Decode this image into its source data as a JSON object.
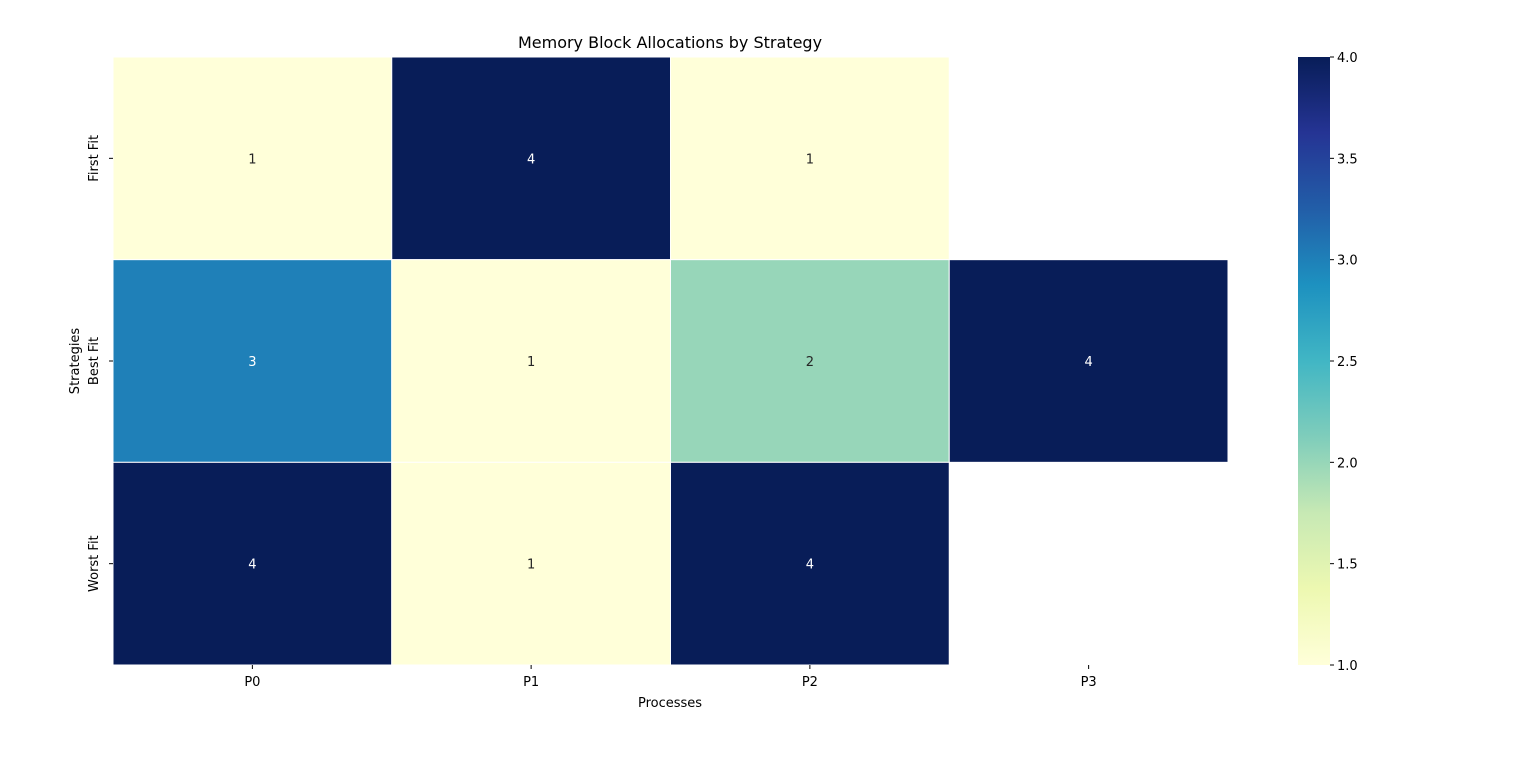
{
  "chart_data": {
    "type": "heatmap",
    "title": "Memory Block Allocations by Strategy",
    "xlabel": "Processes",
    "ylabel": "Strategies",
    "x_categories": [
      "P0",
      "P1",
      "P2",
      "P3"
    ],
    "y_categories": [
      "First Fit",
      "Best Fit",
      "Worst Fit"
    ],
    "values": [
      [
        1,
        4,
        1,
        null
      ],
      [
        3,
        1,
        2,
        4
      ],
      [
        4,
        1,
        4,
        null
      ]
    ],
    "colorbar": {
      "colormap": "YlGnBu",
      "range": [
        1.0,
        4.0
      ],
      "ticks": [
        "1.0",
        "1.5",
        "2.0",
        "2.5",
        "3.0",
        "3.5",
        "4.0"
      ]
    },
    "grid": false
  }
}
